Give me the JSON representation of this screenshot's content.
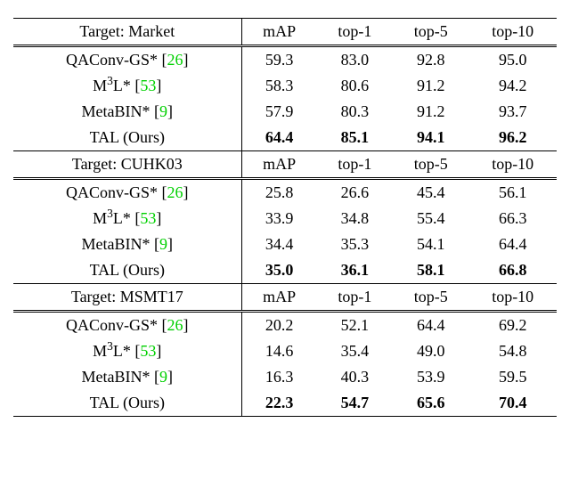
{
  "columns": [
    "mAP",
    "top-1",
    "top-5",
    "top-10"
  ],
  "sections": [
    {
      "target": "Target: Market",
      "rows": [
        {
          "method_prefix": "QAConv-GS* [",
          "cite": "26",
          "method_suffix": "]",
          "vals": [
            "59.3",
            "83.0",
            "92.8",
            "95.0"
          ],
          "bold": false,
          "sup": false
        },
        {
          "method_prefix": "M",
          "sup_txt": "3",
          "method_mid": "L* [",
          "cite": "53",
          "method_suffix": "]",
          "vals": [
            "58.3",
            "80.6",
            "91.2",
            "94.2"
          ],
          "bold": false,
          "sup": true
        },
        {
          "method_prefix": "MetaBIN* [",
          "cite": "9",
          "method_suffix": "]",
          "vals": [
            "57.9",
            "80.3",
            "91.2",
            "93.7"
          ],
          "bold": false,
          "sup": false
        },
        {
          "method_prefix": "TAL (Ours)",
          "cite": "",
          "method_suffix": "",
          "vals": [
            "64.4",
            "85.1",
            "94.1",
            "96.2"
          ],
          "bold": true,
          "sup": false
        }
      ]
    },
    {
      "target": "Target: CUHK03",
      "rows": [
        {
          "method_prefix": "QAConv-GS* [",
          "cite": "26",
          "method_suffix": "]",
          "vals": [
            "25.8",
            "26.6",
            "45.4",
            "56.1"
          ],
          "bold": false,
          "sup": false
        },
        {
          "method_prefix": "M",
          "sup_txt": "3",
          "method_mid": "L* [",
          "cite": "53",
          "method_suffix": "]",
          "vals": [
            "33.9",
            "34.8",
            "55.4",
            "66.3"
          ],
          "bold": false,
          "sup": true
        },
        {
          "method_prefix": "MetaBIN* [",
          "cite": "9",
          "method_suffix": "]",
          "vals": [
            "34.4",
            "35.3",
            "54.1",
            "64.4"
          ],
          "bold": false,
          "sup": false
        },
        {
          "method_prefix": "TAL (Ours)",
          "cite": "",
          "method_suffix": "",
          "vals": [
            "35.0",
            "36.1",
            "58.1",
            "66.8"
          ],
          "bold": true,
          "sup": false
        }
      ]
    },
    {
      "target": "Target: MSMT17",
      "rows": [
        {
          "method_prefix": "QAConv-GS* [",
          "cite": "26",
          "method_suffix": "]",
          "vals": [
            "20.2",
            "52.1",
            "64.4",
            "69.2"
          ],
          "bold": false,
          "sup": false
        },
        {
          "method_prefix": "M",
          "sup_txt": "3",
          "method_mid": "L* [",
          "cite": "53",
          "method_suffix": "]",
          "vals": [
            "14.6",
            "35.4",
            "49.0",
            "54.8"
          ],
          "bold": false,
          "sup": true
        },
        {
          "method_prefix": "MetaBIN* [",
          "cite": "9",
          "method_suffix": "]",
          "vals": [
            "16.3",
            "40.3",
            "53.9",
            "59.5"
          ],
          "bold": false,
          "sup": false
        },
        {
          "method_prefix": "TAL (Ours)",
          "cite": "",
          "method_suffix": "",
          "vals": [
            "22.3",
            "54.7",
            "65.6",
            "70.4"
          ],
          "bold": true,
          "sup": false
        }
      ]
    }
  ]
}
